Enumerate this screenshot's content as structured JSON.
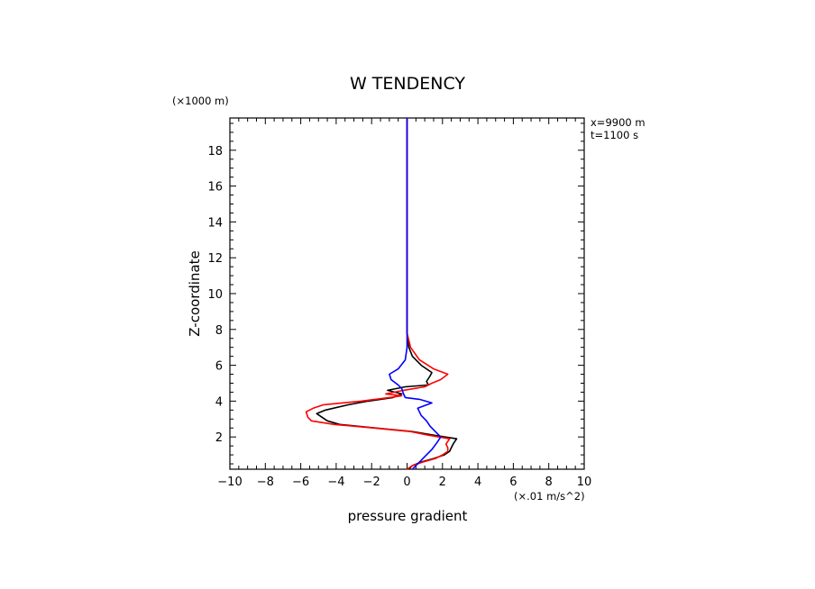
{
  "chart_data": {
    "type": "line",
    "title": "W TENDENCY",
    "xlabel": "pressure gradient",
    "ylabel": "Z-coordinate",
    "x_unit_label": "(×.01 m/s^2)",
    "y_unit_label": "(×1000 m)",
    "annotations": [
      "x=9900 m",
      "t=1100 s"
    ],
    "xlim": [
      -10,
      10
    ],
    "ylim": [
      0.2,
      19.8
    ],
    "x_ticks": [
      -10,
      -8,
      -6,
      -4,
      -2,
      0,
      2,
      4,
      6,
      8,
      10
    ],
    "x_tick_labels": [
      "−10",
      "−8",
      "−6",
      "−4",
      "−2",
      "0",
      "2",
      "4",
      "6",
      "8",
      "10"
    ],
    "y_ticks": [
      2,
      4,
      6,
      8,
      10,
      12,
      14,
      16,
      18
    ],
    "y_tick_labels": [
      "2",
      "4",
      "6",
      "8",
      "10",
      "12",
      "14",
      "16",
      "18"
    ],
    "grid": false,
    "legend": "none",
    "series": [
      {
        "color": "#000000",
        "points": [
          [
            0.1,
            0.2
          ],
          [
            0.3,
            0.4
          ],
          [
            0.8,
            0.6
          ],
          [
            1.5,
            0.8
          ],
          [
            2.1,
            1.0
          ],
          [
            2.4,
            1.2
          ],
          [
            2.5,
            1.4
          ],
          [
            2.6,
            1.6
          ],
          [
            2.8,
            1.9
          ],
          [
            1.5,
            2.1
          ],
          [
            0.3,
            2.3
          ],
          [
            -1.8,
            2.5
          ],
          [
            -3.8,
            2.7
          ],
          [
            -4.5,
            2.9
          ],
          [
            -4.8,
            3.1
          ],
          [
            -5.1,
            3.3
          ],
          [
            -4.6,
            3.5
          ],
          [
            -3.3,
            3.8
          ],
          [
            -2.2,
            4.0
          ],
          [
            -0.8,
            4.2
          ],
          [
            -0.3,
            4.4
          ],
          [
            -1.1,
            4.6
          ],
          [
            -0.1,
            4.8
          ],
          [
            1.2,
            4.9
          ],
          [
            1.1,
            5.1
          ],
          [
            1.3,
            5.4
          ],
          [
            1.4,
            5.6
          ],
          [
            0.8,
            6.0
          ],
          [
            0.3,
            6.5
          ],
          [
            0.1,
            7.0
          ],
          [
            0.0,
            7.8
          ],
          [
            0.0,
            9.0
          ],
          [
            0.0,
            11.0
          ],
          [
            0.0,
            13.0
          ],
          [
            0.0,
            16.0
          ],
          [
            0.0,
            19.8
          ]
        ]
      },
      {
        "color": "#ff0000",
        "points": [
          [
            0.0,
            0.2
          ],
          [
            0.3,
            0.4
          ],
          [
            0.9,
            0.6
          ],
          [
            1.6,
            0.8
          ],
          [
            2.0,
            1.0
          ],
          [
            2.3,
            1.2
          ],
          [
            2.3,
            1.4
          ],
          [
            2.2,
            1.6
          ],
          [
            2.4,
            1.9
          ],
          [
            1.2,
            2.1
          ],
          [
            0.2,
            2.3
          ],
          [
            -1.9,
            2.5
          ],
          [
            -4.1,
            2.7
          ],
          [
            -5.4,
            2.9
          ],
          [
            -5.6,
            3.1
          ],
          [
            -5.7,
            3.4
          ],
          [
            -5.3,
            3.6
          ],
          [
            -4.7,
            3.8
          ],
          [
            -2.6,
            4.0
          ],
          [
            -1.0,
            4.2
          ],
          [
            -0.3,
            4.3
          ],
          [
            -1.2,
            4.4
          ],
          [
            -0.2,
            4.6
          ],
          [
            1.0,
            4.8
          ],
          [
            1.4,
            5.0
          ],
          [
            1.9,
            5.2
          ],
          [
            2.3,
            5.5
          ],
          [
            1.5,
            5.8
          ],
          [
            0.7,
            6.3
          ],
          [
            0.2,
            7.0
          ],
          [
            0.0,
            7.8
          ],
          [
            0.0,
            9.0
          ],
          [
            0.0,
            11.0
          ],
          [
            0.0,
            13.0
          ],
          [
            0.0,
            16.0
          ],
          [
            0.0,
            19.8
          ]
        ]
      },
      {
        "color": "#0000ff",
        "points": [
          [
            0.3,
            0.2
          ],
          [
            0.6,
            0.5
          ],
          [
            1.0,
            0.9
          ],
          [
            1.4,
            1.3
          ],
          [
            1.7,
            1.7
          ],
          [
            1.9,
            2.0
          ],
          [
            1.6,
            2.3
          ],
          [
            1.3,
            2.6
          ],
          [
            1.1,
            2.9
          ],
          [
            0.8,
            3.2
          ],
          [
            0.6,
            3.6
          ],
          [
            1.4,
            3.9
          ],
          [
            0.7,
            4.1
          ],
          [
            -0.1,
            4.2
          ],
          [
            -0.2,
            4.4
          ],
          [
            -0.3,
            4.7
          ],
          [
            -0.5,
            4.9
          ],
          [
            -0.9,
            5.2
          ],
          [
            -1.0,
            5.5
          ],
          [
            -0.5,
            5.8
          ],
          [
            -0.1,
            6.3
          ],
          [
            0.0,
            7.0
          ],
          [
            0.0,
            8.0
          ],
          [
            0.0,
            10.0
          ],
          [
            0.0,
            13.0
          ],
          [
            0.0,
            16.0
          ],
          [
            0.0,
            19.8
          ]
        ]
      }
    ]
  }
}
